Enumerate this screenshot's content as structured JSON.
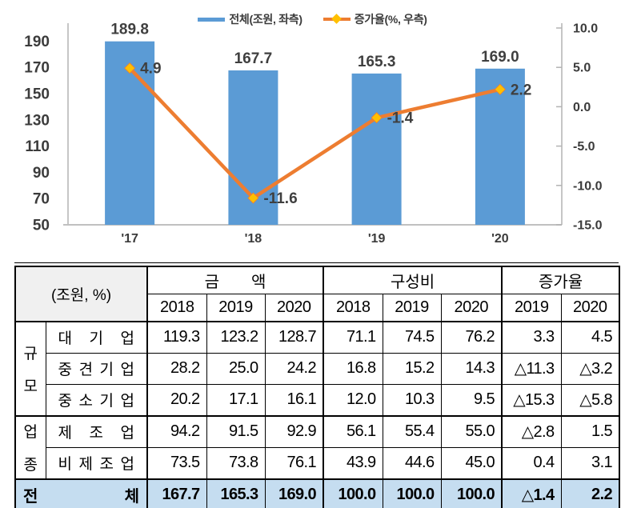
{
  "chart_data": {
    "type": "bar+line",
    "categories": [
      "'17",
      "'18",
      "'19",
      "'20"
    ],
    "series": [
      {
        "name": "전체(조원, 좌측)",
        "type": "bar",
        "axis": "left",
        "color": "#5B9BD5",
        "values": [
          189.8,
          167.7,
          165.3,
          169.0
        ]
      },
      {
        "name": "증가율(%, 우측)",
        "type": "line",
        "axis": "right",
        "color": "#ED7D31",
        "marker_color": "#FFC000",
        "values": [
          4.9,
          -11.6,
          -1.4,
          2.2
        ]
      }
    ],
    "left_axis": {
      "min": 50,
      "max": 200,
      "ticks": [
        190,
        170,
        150,
        130,
        110,
        90,
        70,
        50
      ]
    },
    "right_axis": {
      "min": -15,
      "max": 10,
      "ticks": [
        10,
        5,
        0,
        -5,
        -10,
        -15
      ]
    },
    "legend_position": "top",
    "grid": false
  },
  "table": {
    "unit_label": "(조원, %)",
    "col_groups": [
      {
        "label": "금　　액",
        "years": [
          "2018",
          "2019",
          "2020"
        ]
      },
      {
        "label": "구성비",
        "years": [
          "2018",
          "2019",
          "2020"
        ]
      },
      {
        "label": "증가율",
        "years": [
          "2019",
          "2020"
        ]
      }
    ],
    "row_groups": [
      {
        "label": "규모",
        "rows": [
          {
            "label": "대기업",
            "values": [
              "119.3",
              "123.2",
              "128.7",
              "71.1",
              "74.5",
              "76.2",
              "3.3",
              "4.5"
            ]
          },
          {
            "label": "중견기업",
            "values": [
              "28.2",
              "25.0",
              "24.2",
              "16.8",
              "15.2",
              "14.3",
              "△11.3",
              "△3.2"
            ]
          },
          {
            "label": "중소기업",
            "values": [
              "20.2",
              "17.1",
              "16.1",
              "12.0",
              "10.3",
              "9.5",
              "△15.3",
              "△5.8"
            ]
          }
        ]
      },
      {
        "label": "업종",
        "rows": [
          {
            "label": "제조업",
            "values": [
              "94.2",
              "91.5",
              "92.9",
              "56.1",
              "55.4",
              "55.0",
              "△2.8",
              "1.5"
            ]
          },
          {
            "label": "비제조업",
            "values": [
              "73.5",
              "73.8",
              "76.1",
              "43.9",
              "44.6",
              "45.0",
              "0.4",
              "3.1"
            ]
          }
        ]
      }
    ],
    "total_row": {
      "label": "전체",
      "values": [
        "167.7",
        "165.3",
        "169.0",
        "100.0",
        "100.0",
        "100.0",
        "△1.4",
        "2.2"
      ]
    },
    "colors": {
      "total_row_bg": "#C5DDF0",
      "unit_cell_bg": "#F0F0F0"
    }
  }
}
